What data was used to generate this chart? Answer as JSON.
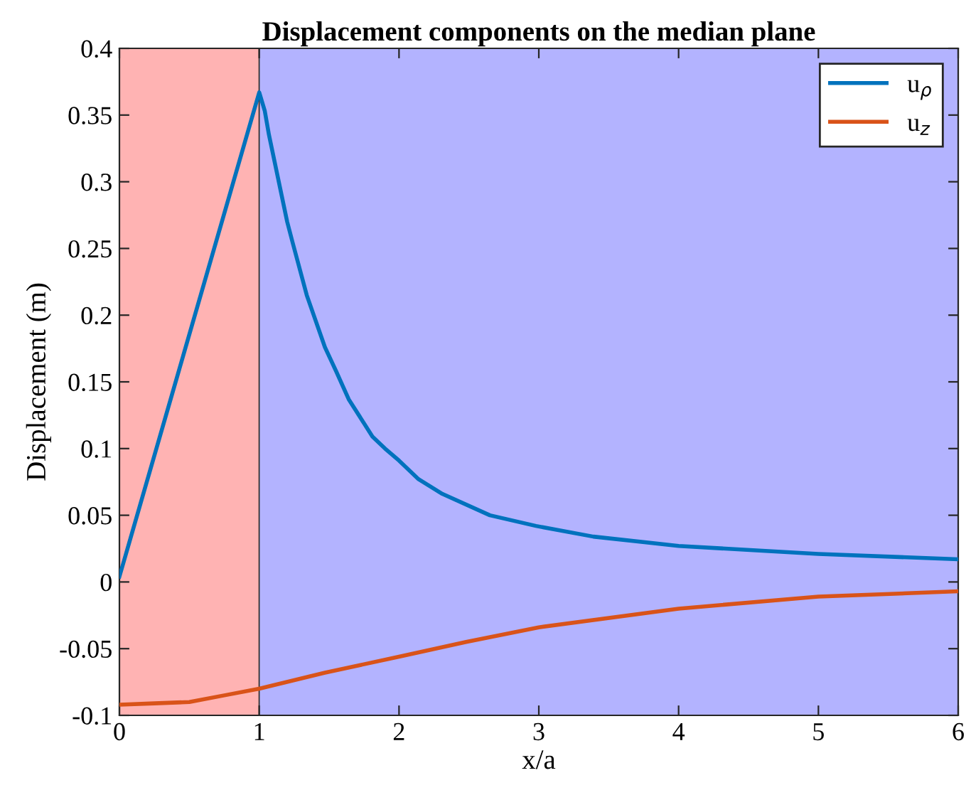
{
  "chart_data": {
    "type": "line",
    "title": "Displacement components on the median plane",
    "xlabel": "x/a",
    "ylabel": "Displacement (m)",
    "series": [
      {
        "name": "u$_{ρ}$",
        "color": "#0072bd",
        "x": [
          0,
          1,
          1.04,
          1.07,
          1.14,
          1.2,
          1.24,
          1.34,
          1.47,
          1.55,
          1.64,
          1.81,
          1.9,
          2,
          2.14,
          2.31,
          2.65,
          2.98,
          3.39,
          4,
          5,
          6
        ],
        "values": [
          0.004,
          0.367,
          0.353,
          0.335,
          0.3,
          0.27,
          0.254,
          0.215,
          0.176,
          0.158,
          0.137,
          0.109,
          0.1,
          0.091,
          0.077,
          0.066,
          0.05,
          0.042,
          0.034,
          0.027,
          0.021,
          0.017
        ]
      },
      {
        "name": "u$_{z}$",
        "color": "#d95319",
        "x": [
          0,
          0.25,
          0.5,
          0.75,
          1,
          1.47,
          2,
          2.48,
          3,
          4,
          5,
          6
        ],
        "values": [
          -0.092,
          -0.091,
          -0.09,
          -0.085,
          -0.08,
          -0.068,
          -0.056,
          -0.045,
          -0.034,
          -0.02,
          -0.011,
          -0.007
        ]
      }
    ],
    "bands": [
      {
        "axis": "x",
        "from": 0,
        "to": 1,
        "color": "#ffb3b3"
      },
      {
        "axis": "x",
        "from": 1,
        "to": 6,
        "color": "#b3b3ff"
      }
    ],
    "xlim": [
      0,
      6
    ],
    "xticks": [
      0,
      1,
      2,
      3,
      4,
      5,
      6
    ],
    "ylim": [
      -0.1,
      0.4
    ],
    "yticks": [
      -0.1,
      -0.05,
      0,
      0.05,
      0.1,
      0.15,
      0.2,
      0.25,
      0.3,
      0.35,
      0.4
    ],
    "legend": "top right",
    "grid": false,
    "marker": "none",
    "line_style": "solid"
  }
}
